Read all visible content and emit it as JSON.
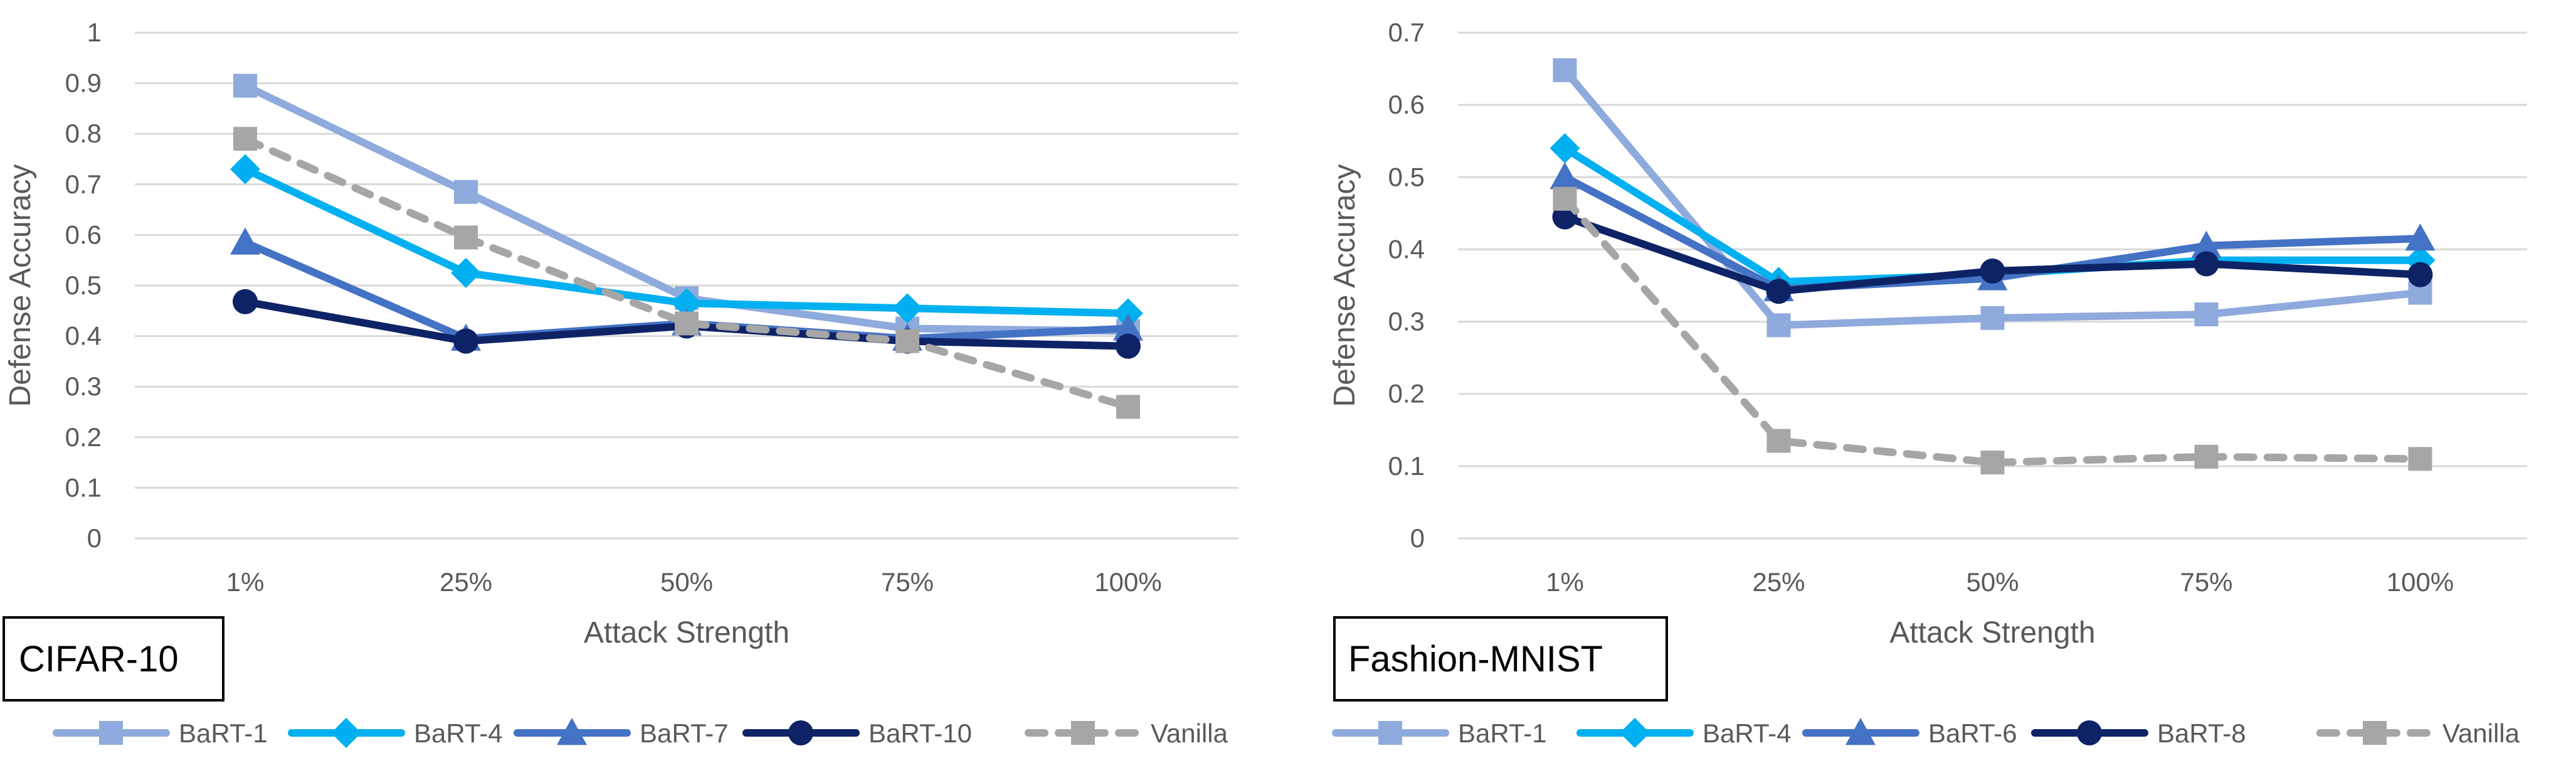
{
  "chart_data": [
    {
      "type": "line",
      "title": "CIFAR-10",
      "xlabel": "Attack Strength",
      "ylabel": "Defense Accuracy",
      "categories": [
        "1%",
        "25%",
        "50%",
        "75%",
        "100%"
      ],
      "ylim": [
        0,
        1
      ],
      "yticks": [
        "0",
        "0.1",
        "0.2",
        "0.3",
        "0.4",
        "0.5",
        "0.6",
        "0.7",
        "0.8",
        "0.9",
        "1"
      ],
      "grid": true,
      "legend": "bottom",
      "series": [
        {
          "name": "BaRT-1",
          "values": [
            0.895,
            0.685,
            0.475,
            0.415,
            0.41
          ],
          "color": "#8FAADC",
          "marker": "square",
          "dashed": false
        },
        {
          "name": "BaRT-4",
          "values": [
            0.73,
            0.525,
            0.465,
            0.455,
            0.445
          ],
          "color": "#00B0F0",
          "marker": "diamond",
          "dashed": false
        },
        {
          "name": "BaRT-7",
          "values": [
            0.585,
            0.395,
            0.425,
            0.395,
            0.415
          ],
          "color": "#4472C4",
          "marker": "triangle",
          "dashed": false
        },
        {
          "name": "BaRT-10",
          "values": [
            0.468,
            0.39,
            0.42,
            0.39,
            0.38
          ],
          "color": "#0E2366",
          "marker": "circle",
          "dashed": false
        },
        {
          "name": "Vanilla",
          "values": [
            0.79,
            0.595,
            0.425,
            0.39,
            0.26
          ],
          "color": "#A6A6A6",
          "marker": "square",
          "dashed": true
        }
      ]
    },
    {
      "type": "line",
      "title": "Fashion-MNIST",
      "xlabel": "Attack Strength",
      "ylabel": "Defense Accuracy",
      "categories": [
        "1%",
        "25%",
        "50%",
        "75%",
        "100%"
      ],
      "ylim": [
        0,
        0.7
      ],
      "yticks": [
        "0",
        "0.1",
        "0.2",
        "0.3",
        "0.4",
        "0.5",
        "0.6",
        "0.7"
      ],
      "grid": true,
      "legend": "bottom",
      "series": [
        {
          "name": "BaRT-1",
          "values": [
            0.648,
            0.295,
            0.305,
            0.31,
            0.34
          ],
          "color": "#8FAADC",
          "marker": "square",
          "dashed": false
        },
        {
          "name": "BaRT-4",
          "values": [
            0.54,
            0.355,
            0.365,
            0.385,
            0.385
          ],
          "color": "#00B0F0",
          "marker": "diamond",
          "dashed": false
        },
        {
          "name": "BaRT-6",
          "values": [
            0.5,
            0.345,
            0.36,
            0.405,
            0.415
          ],
          "color": "#4472C4",
          "marker": "triangle",
          "dashed": false
        },
        {
          "name": "BaRT-8",
          "values": [
            0.445,
            0.342,
            0.37,
            0.38,
            0.365
          ],
          "color": "#0E2366",
          "marker": "circle",
          "dashed": false
        },
        {
          "name": "Vanilla",
          "values": [
            0.47,
            0.135,
            0.105,
            0.113,
            0.11
          ],
          "color": "#A6A6A6",
          "marker": "square",
          "dashed": true
        }
      ]
    }
  ]
}
